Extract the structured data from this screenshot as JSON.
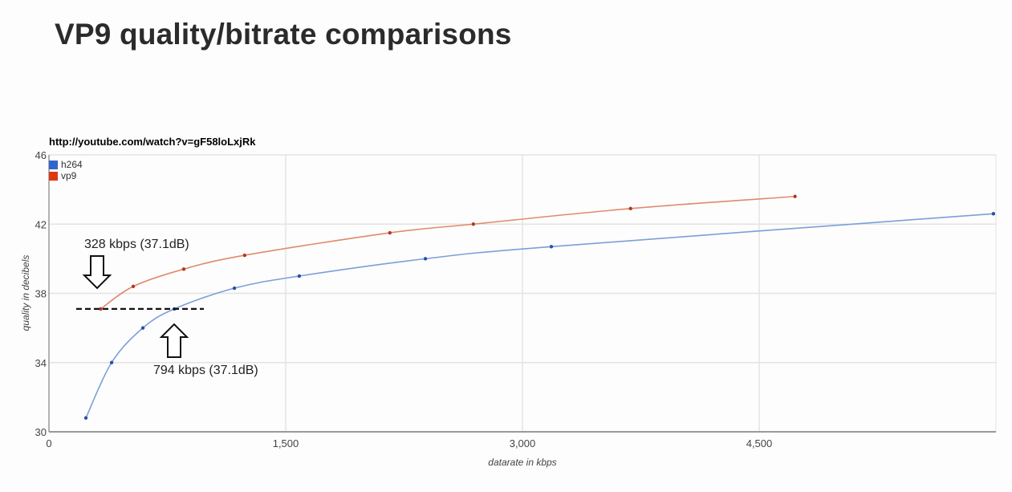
{
  "slide": {
    "title": "VP9 quality/bitrate comparisons"
  },
  "chart_data": {
    "type": "line",
    "title": "http://youtube.com/watch?v=gF58loLxjRk",
    "xlabel": "datarate in kbps",
    "ylabel": "quality in decibels",
    "xlim": [
      0,
      6000
    ],
    "ylim": [
      30,
      46
    ],
    "x_ticks": [
      "0",
      "1,500",
      "3,000",
      "4,500"
    ],
    "x_tick_values": [
      0,
      1500,
      3000,
      4500
    ],
    "y_ticks": [
      "30",
      "34",
      "38",
      "42",
      "46"
    ],
    "y_tick_values": [
      30,
      34,
      38,
      42,
      46
    ],
    "grid": true,
    "legend_position": "top-left inside",
    "series": [
      {
        "name": "h264",
        "color": "#3366cc",
        "x": [
          234,
          397,
          595,
          794,
          1175,
          1586,
          2385,
          3183,
          5984
        ],
        "y": [
          30.8,
          34.0,
          36.0,
          37.1,
          38.3,
          39.0,
          40.0,
          40.7,
          42.6
        ]
      },
      {
        "name": "vp9",
        "color": "#dc3912",
        "x": [
          328,
          534,
          854,
          1240,
          2160,
          2689,
          3685,
          4727
        ],
        "y": [
          37.1,
          38.4,
          39.4,
          40.2,
          41.5,
          42.0,
          42.9,
          43.6
        ]
      }
    ],
    "annotations": [
      {
        "text": "328 kbps (37.1dB)",
        "arrow": "down",
        "x": 328,
        "y": 37.1
      },
      {
        "text": "794 kbps (37.1dB)",
        "arrow": "up",
        "x": 794,
        "y": 37.1
      },
      {
        "text": "",
        "type": "dashed-line",
        "y": 37.1,
        "x_from": 180,
        "x_to": 980
      }
    ]
  },
  "legend": {
    "items": [
      {
        "label": "h264",
        "color": "#3366cc"
      },
      {
        "label": "vp9",
        "color": "#dc3912"
      }
    ]
  }
}
